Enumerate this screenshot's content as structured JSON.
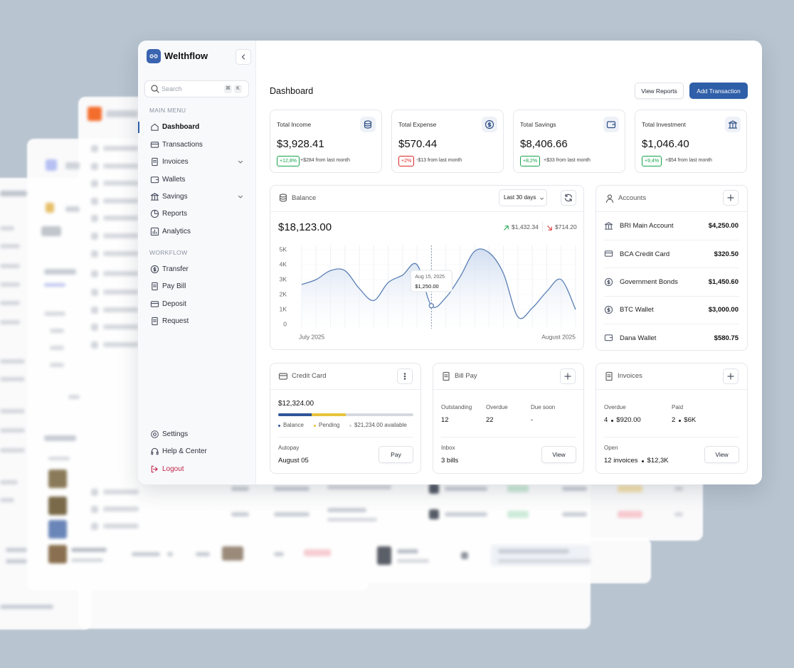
{
  "sidebar": {
    "brand": "Welthflow",
    "search": "Search",
    "shortcut": [
      "⌘",
      "K"
    ],
    "sections": [
      {
        "title": "MAIN MENU",
        "items": [
          "Dashboard",
          "Transactions",
          "Invoices",
          "Wallets",
          "Savings",
          "Reports",
          "Analytics"
        ]
      },
      {
        "title": "WORKFLOW",
        "items": [
          "Transfer",
          "Pay Bill",
          "Deposit",
          "Request"
        ]
      }
    ],
    "footer": [
      "Settings",
      "Help & Center",
      "Logout"
    ]
  },
  "header": {
    "title": "Dashboard",
    "buttons": [
      "View Reports",
      "Add Transaction"
    ]
  },
  "stats": [
    {
      "label": "Total Income",
      "value": "$3,928.41",
      "change": "+12,8%",
      "note": "+$284 from last month",
      "color": "#16a34a"
    },
    {
      "label": "Total Expense",
      "value": "$570.44",
      "change": "+2%",
      "note": "-$13 from last month",
      "color": "#dc2626"
    },
    {
      "label": "Total Savings",
      "value": "$8,406.66",
      "change": "+8,2%",
      "note": "+$33 from last month",
      "color": "#16a34a"
    },
    {
      "label": "Total Investment",
      "value": "$1,046.40",
      "change": "+9,4%",
      "note": "+$54 from last month",
      "color": "#16a34a"
    }
  ],
  "balance": {
    "title": "Balance",
    "range": "Last 30 days",
    "total": "$18,123.00",
    "inflow": "$1,432.34",
    "outflow": "$714.20",
    "chart": {
      "type": "line",
      "categories": [
        "July 2025",
        null,
        null,
        null,
        null,
        null,
        null,
        null,
        null,
        null,
        null,
        null,
        null,
        null,
        null,
        null,
        null,
        null,
        null,
        "August 2025"
      ],
      "values": [
        2670,
        3000,
        3600,
        3600,
        2400,
        1600,
        2800,
        3300,
        4000,
        1250,
        1800,
        3200,
        4900,
        4800,
        3400,
        500,
        1100,
        2200,
        3000,
        1000
      ],
      "color": "#5a7fb5",
      "ylim": [
        0,
        5000
      ],
      "yticks": [
        {
          "value": 0,
          "label": "0"
        },
        {
          "value": 1000,
          "label": "1K"
        },
        {
          "value": 2000,
          "label": "2K"
        },
        {
          "value": 3000,
          "label": "3K"
        },
        {
          "value": 4000,
          "label": "4K"
        },
        {
          "value": 5000,
          "label": "5K"
        }
      ],
      "tooltip": {
        "label": "Aug 15, 2025",
        "value": 1250,
        "value_label": "$1,250.00"
      }
    }
  },
  "accounts": {
    "title": "Accounts",
    "rows": [
      {
        "name": "BRI Main Account",
        "amount": "$4,250.00"
      },
      {
        "name": "BCA Credit Card",
        "amount": "$320.50"
      },
      {
        "name": "Government Bonds",
        "amount": "$1,450.60"
      },
      {
        "name": "BTC Wallet",
        "amount": "$3,000.00"
      },
      {
        "name": "Dana Wallet",
        "amount": "$580.75"
      }
    ]
  },
  "credit_card": {
    "title": "Credit Card",
    "balance": "$12,324.00",
    "legend": [
      "Balance",
      "Pending",
      "$21,234.00 available"
    ],
    "autopay_label": "Autopay",
    "autopay_date": "August 05",
    "button": "Pay"
  },
  "bill_pay": {
    "title": "Bill Pay",
    "stats": [
      {
        "label": "Outstanding",
        "value": "12"
      },
      {
        "label": "Overdue",
        "value": "22"
      },
      {
        "label": "Due soon",
        "value": "-"
      }
    ],
    "inbox_label": "Inbox",
    "inbox_value": "3 bills",
    "button": "View"
  },
  "invoices": {
    "title": "Invoices",
    "stats": [
      {
        "label": "Overdue",
        "count": "4",
        "amount": "$920.00"
      },
      {
        "label": "Paid",
        "count": "2",
        "amount": "$6K"
      }
    ],
    "open_label": "Open",
    "open_count": "12 invoices",
    "open_amount": "$12,3K",
    "button": "View"
  }
}
